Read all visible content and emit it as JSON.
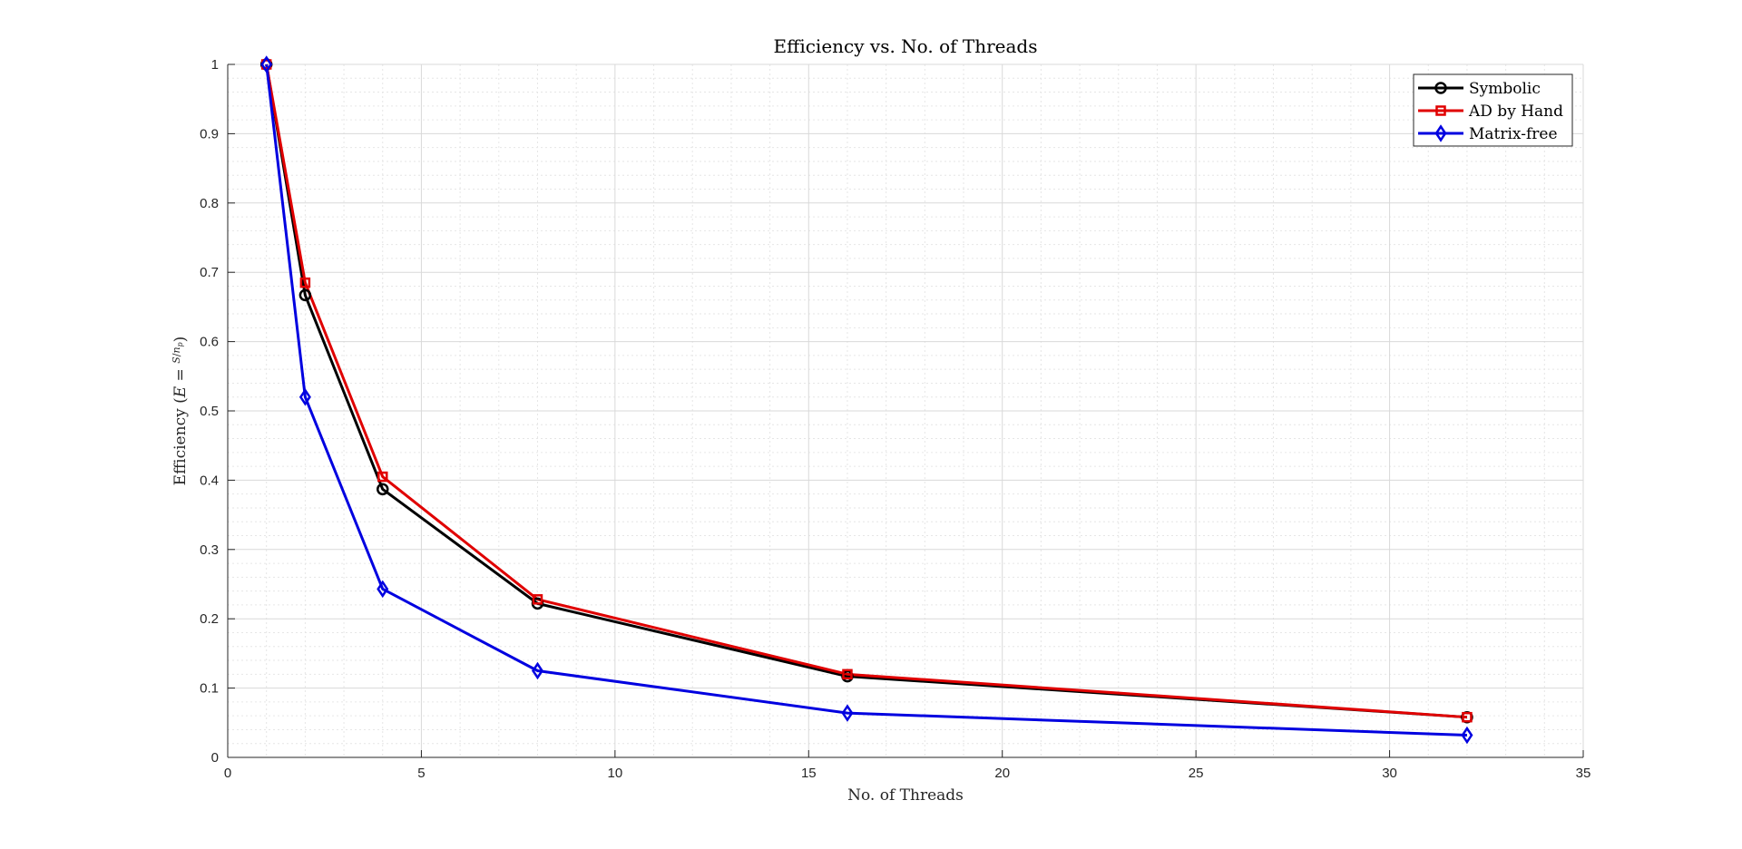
{
  "chart_data": {
    "type": "line",
    "title": "Efficiency vs. No. of Threads",
    "xlabel": "No. of Threads",
    "ylabel": "Efficiency (E = S/n_p)",
    "ylabel_parts": {
      "prefix": "Efficiency (",
      "var": "E",
      "eq": " = ",
      "num": "S",
      "den": "n",
      "den_sub": "p",
      "suffix": ")"
    },
    "xlim": [
      0,
      35
    ],
    "ylim": [
      0,
      1
    ],
    "x_ticks": [
      0,
      5,
      10,
      15,
      20,
      25,
      30,
      35
    ],
    "y_ticks": [
      0,
      0.1,
      0.2,
      0.3,
      0.4,
      0.5,
      0.6,
      0.7,
      0.8,
      0.9,
      1
    ],
    "grid": true,
    "minor_grid": true,
    "legend_position": "top-right",
    "x": [
      1,
      2,
      4,
      8,
      16,
      32
    ],
    "series": [
      {
        "name": "Symbolic",
        "color": "#000000",
        "marker": "circle",
        "values": [
          1.0,
          0.667,
          0.387,
          0.222,
          0.117,
          0.058
        ]
      },
      {
        "name": "AD by Hand",
        "color": "#e00000",
        "marker": "square",
        "values": [
          1.0,
          0.685,
          0.405,
          0.228,
          0.12,
          0.058
        ]
      },
      {
        "name": "Matrix-free",
        "color": "#0000e0",
        "marker": "diamond",
        "values": [
          1.0,
          0.52,
          0.243,
          0.125,
          0.064,
          0.032
        ]
      }
    ]
  }
}
